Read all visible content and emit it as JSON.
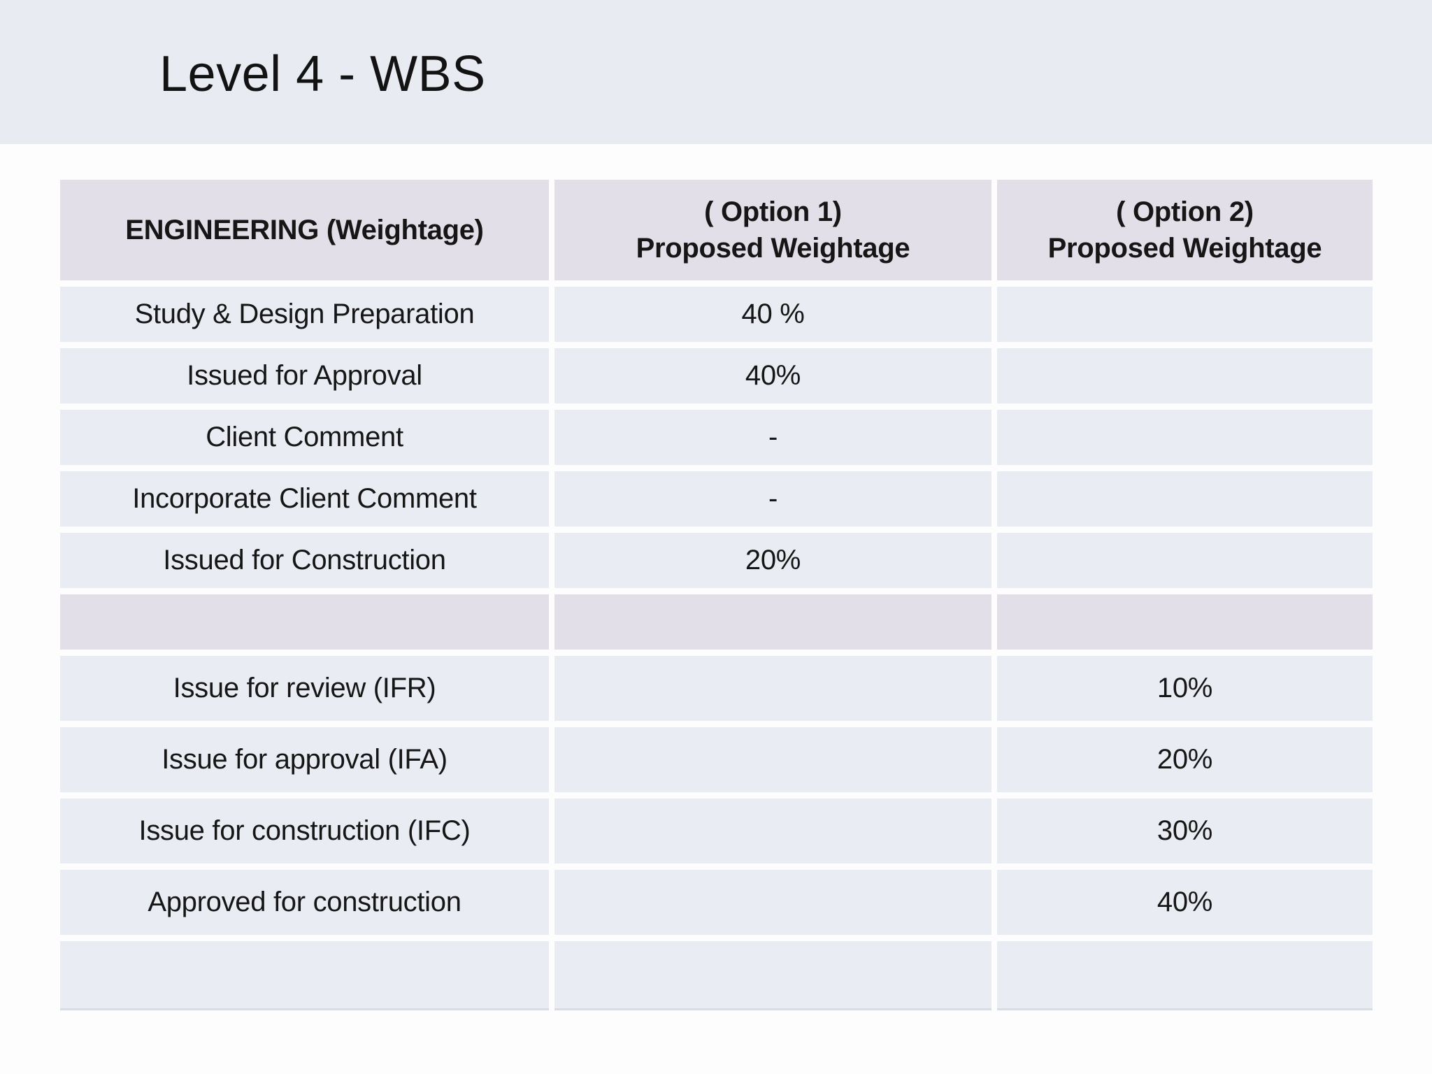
{
  "slide": {
    "title": "Level 4 - WBS"
  },
  "table": {
    "columns": [
      {
        "label": "ENGINEERING (Weightage)"
      },
      {
        "line1": "( Option 1)",
        "line2": "Proposed Weightage"
      },
      {
        "line1": "( Option 2)",
        "line2": "Proposed Weightage"
      }
    ],
    "rows": [
      {
        "activity": "Study & Design Preparation",
        "option1": "40 %",
        "option2": ""
      },
      {
        "activity": "Issued for Approval",
        "option1": "40%",
        "option2": ""
      },
      {
        "activity": "Client Comment",
        "option1": "-",
        "option2": ""
      },
      {
        "activity": "Incorporate Client Comment",
        "option1": "-",
        "option2": ""
      },
      {
        "activity": "Issued for Construction",
        "option1": "20%",
        "option2": ""
      },
      {
        "activity": "",
        "option1": "",
        "option2": ""
      },
      {
        "activity": "Issue for review (IFR)",
        "option1": "",
        "option2": "10%"
      },
      {
        "activity": "Issue for approval (IFA)",
        "option1": "",
        "option2": "20%"
      },
      {
        "activity": "Issue for construction (IFC)",
        "option1": "",
        "option2": "30%"
      },
      {
        "activity": "Approved for construction",
        "option1": "",
        "option2": "40%"
      },
      {
        "activity": "",
        "option1": "",
        "option2": ""
      }
    ]
  },
  "colors": {
    "title_band_bg": "#e8ecf2",
    "header_row_bg": "#e3dfe8",
    "data_row_bg": "#e9ecf3",
    "page_bg": "#fdfdfd",
    "text": "#141414"
  }
}
